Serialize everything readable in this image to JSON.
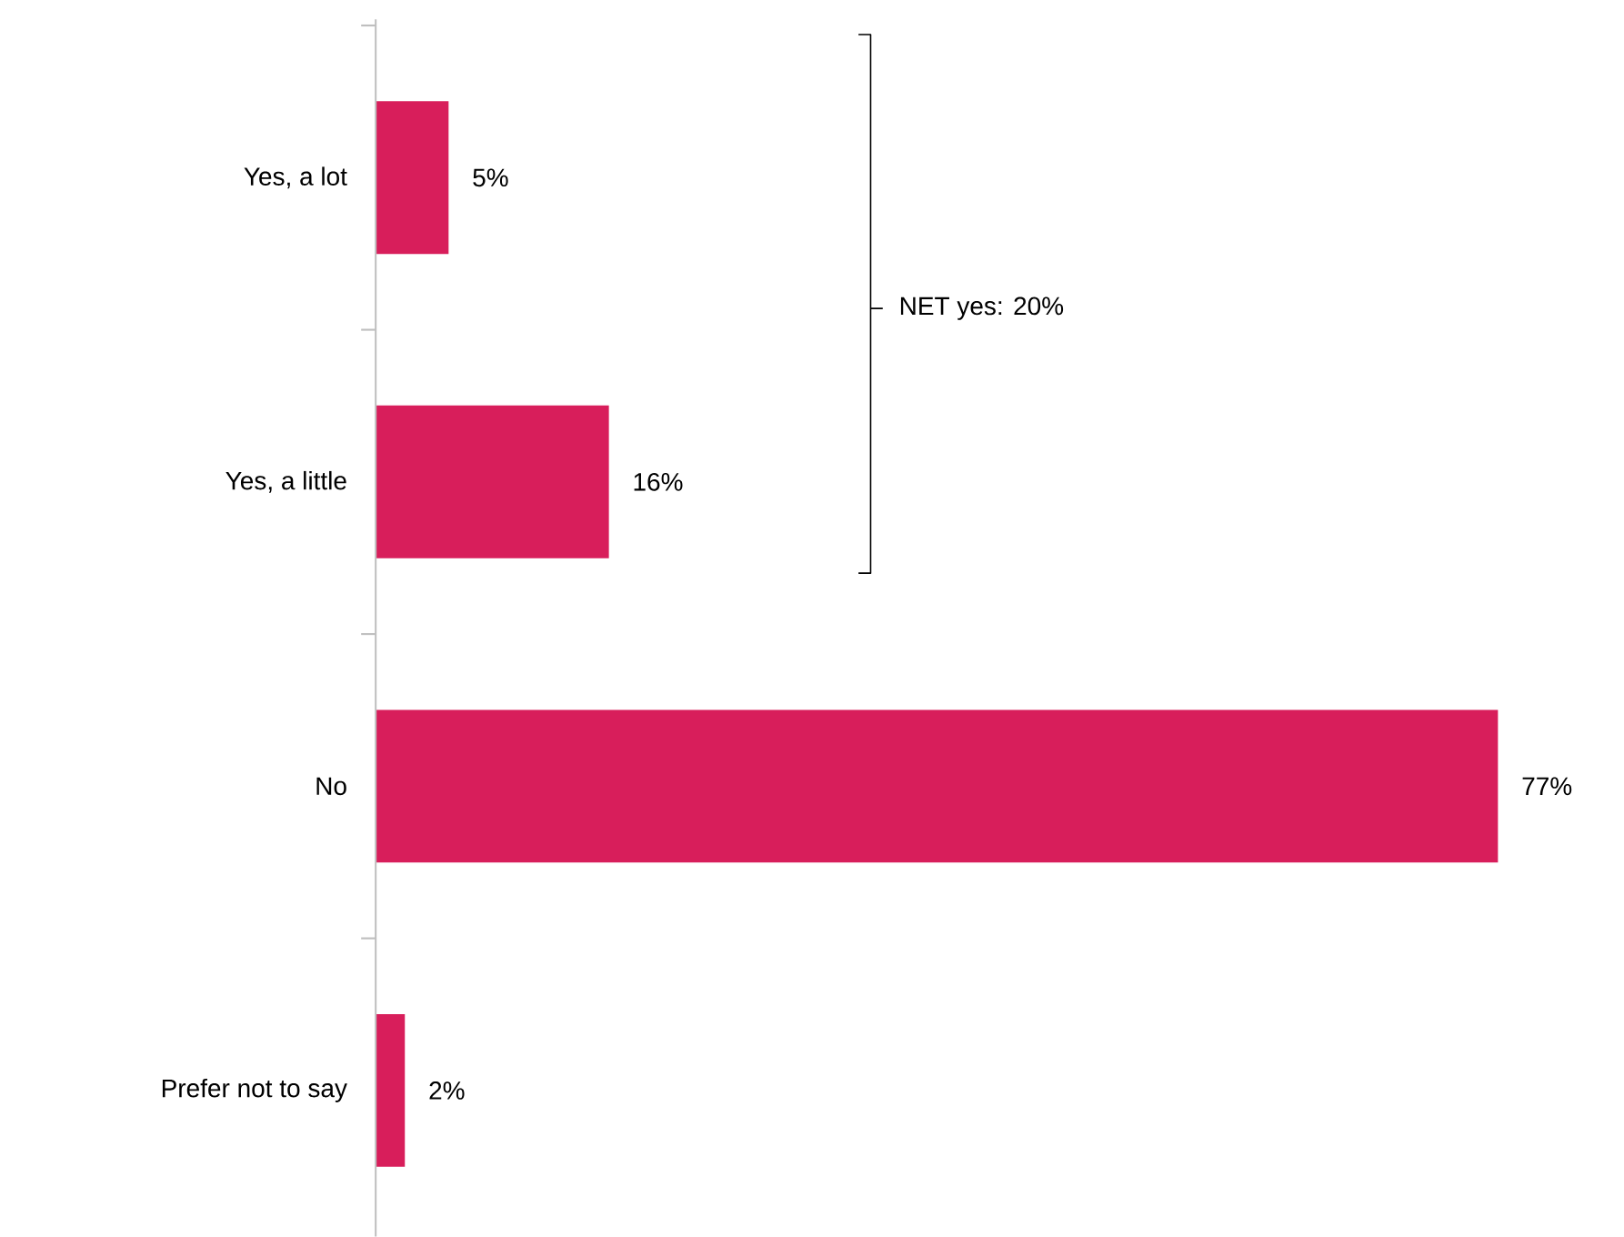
{
  "chart_data": {
    "type": "bar",
    "orientation": "horizontal",
    "categories": [
      "Yes, a lot",
      "Yes, a little",
      "No",
      "Prefer not to say"
    ],
    "values": [
      5,
      16,
      77,
      2
    ],
    "value_labels": [
      "5%",
      "16%",
      "77%",
      "2%"
    ],
    "color": "#d81e5b",
    "annotations": [
      "NET yes: 20%"
    ]
  }
}
